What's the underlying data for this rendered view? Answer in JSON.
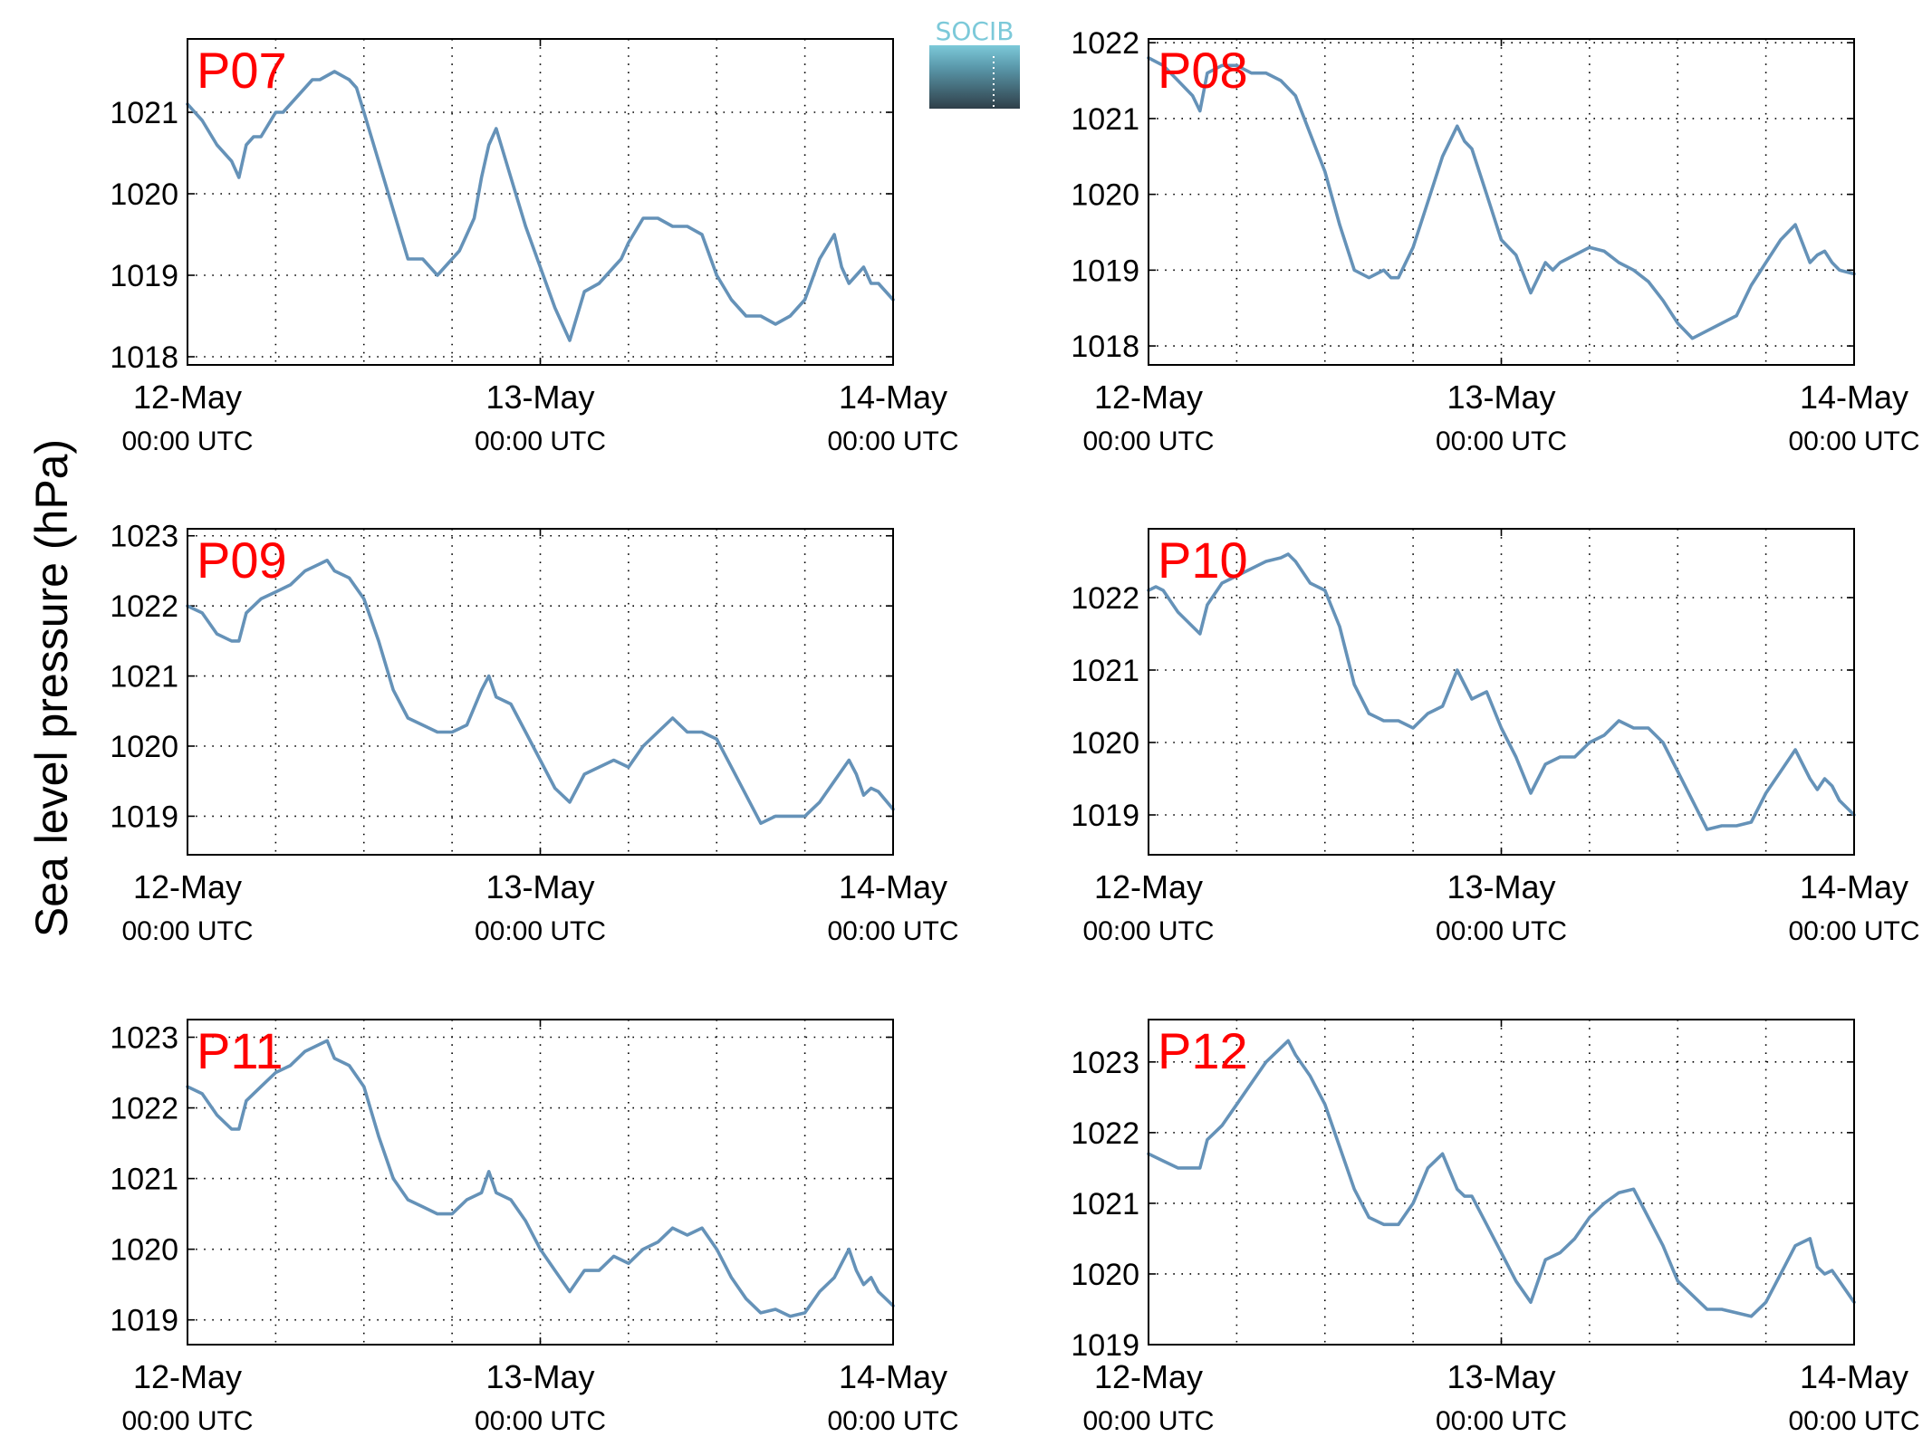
{
  "ylabel": "Sea level pressure (hPa)",
  "logo": {
    "text": "SOCIB",
    "colors": {
      "top": "#7cc9d9",
      "bottom": "#2f3f49"
    }
  },
  "colors": {
    "line": "#6592b8",
    "panel_label": "#ff0000",
    "grid": "#000000"
  },
  "chart_data": [
    {
      "type": "line",
      "panel_label": "P07",
      "ylim": [
        1017.9,
        1021.9
      ],
      "yticks": [
        1018,
        1019,
        1020,
        1021
      ],
      "xticks": [
        {
          "day": "12-May",
          "time": "00:00 UTC"
        },
        {
          "day": "13-May",
          "time": "00:00 UTC"
        },
        {
          "day": "14-May",
          "time": "00:00 UTC"
        }
      ],
      "xlim_hours": [
        0,
        48
      ],
      "series": [
        {
          "x": [
            0,
            1,
            2,
            3,
            3.5,
            4,
            4.5,
            5,
            6,
            6.5,
            7,
            8,
            8.5,
            9,
            10,
            11,
            11.5,
            12,
            13,
            14,
            15,
            16,
            17,
            18,
            18.5,
            19,
            19.5,
            20,
            20.5,
            21,
            22,
            23,
            24,
            25,
            26,
            27,
            27.5,
            28,
            29,
            29.5,
            30,
            31,
            32,
            33,
            34,
            35,
            36,
            37,
            38,
            39,
            40,
            41,
            42,
            43,
            44,
            44.5,
            45,
            45.5,
            46,
            46.5,
            47,
            48
          ],
          "y": [
            1021.1,
            1020.9,
            1020.6,
            1020.4,
            1020.2,
            1020.6,
            1020.7,
            1020.7,
            1021.0,
            1021.0,
            1021.1,
            1021.3,
            1021.4,
            1021.4,
            1021.5,
            1021.4,
            1021.3,
            1021.0,
            1020.4,
            1019.8,
            1019.2,
            1019.2,
            1019.0,
            1019.2,
            1019.3,
            1019.5,
            1019.7,
            1020.2,
            1020.6,
            1020.8,
            1020.2,
            1019.6,
            1019.1,
            1018.6,
            1018.2,
            1018.8,
            1018.85,
            1018.9,
            1019.1,
            1019.2,
            1019.4,
            1019.7,
            1019.7,
            1019.6,
            1019.6,
            1019.5,
            1019.0,
            1018.7,
            1018.5,
            1018.5,
            1018.4,
            1018.5,
            1018.7,
            1019.2,
            1019.5,
            1019.1,
            1018.9,
            1019.0,
            1019.1,
            1018.9,
            1018.9,
            1018.7
          ]
        }
      ]
    },
    {
      "type": "line",
      "panel_label": "P08",
      "ylim": [
        1017.75,
        1022.05
      ],
      "yticks": [
        1018,
        1019,
        1020,
        1021,
        1022
      ],
      "xticks": [
        {
          "day": "12-May",
          "time": "00:00 UTC"
        },
        {
          "day": "13-May",
          "time": "00:00 UTC"
        },
        {
          "day": "14-May",
          "time": "00:00 UTC"
        }
      ],
      "xlim_hours": [
        0,
        48
      ],
      "series": [
        {
          "x": [
            0,
            1,
            2,
            3,
            3.5,
            4,
            5,
            6,
            7,
            8,
            9,
            10,
            11,
            12,
            13,
            14,
            15,
            16,
            16.5,
            17,
            18,
            19,
            20,
            21,
            21.5,
            22,
            23,
            24,
            25,
            26,
            27,
            27.5,
            28,
            29,
            30,
            31,
            32,
            33,
            34,
            35,
            36,
            37,
            38,
            39,
            40,
            41,
            42,
            43,
            44,
            45,
            45.5,
            46,
            46.5,
            47,
            48
          ],
          "y": [
            1021.8,
            1021.7,
            1021.5,
            1021.3,
            1021.1,
            1021.6,
            1021.7,
            1021.7,
            1021.6,
            1021.6,
            1021.5,
            1021.3,
            1020.8,
            1020.3,
            1019.6,
            1019.0,
            1018.9,
            1019.0,
            1018.9,
            1018.9,
            1019.3,
            1019.9,
            1020.5,
            1020.9,
            1020.7,
            1020.6,
            1020.0,
            1019.4,
            1019.2,
            1018.7,
            1019.1,
            1019.0,
            1019.1,
            1019.2,
            1019.3,
            1019.25,
            1019.1,
            1019.0,
            1018.85,
            1018.6,
            1018.3,
            1018.1,
            1018.2,
            1018.3,
            1018.4,
            1018.8,
            1019.1,
            1019.4,
            1019.6,
            1019.1,
            1019.2,
            1019.25,
            1019.1,
            1019.0,
            1018.95
          ]
        }
      ]
    },
    {
      "type": "line",
      "panel_label": "P09",
      "ylim": [
        1018.45,
        1023.1
      ],
      "yticks": [
        1019,
        1020,
        1021,
        1022,
        1023
      ],
      "xticks": [
        {
          "day": "12-May",
          "time": "00:00 UTC"
        },
        {
          "day": "13-May",
          "time": "00:00 UTC"
        },
        {
          "day": "14-May",
          "time": "00:00 UTC"
        }
      ],
      "xlim_hours": [
        0,
        48
      ],
      "series": [
        {
          "x": [
            0,
            1,
            2,
            3,
            3.5,
            4,
            5,
            6,
            7,
            8,
            9,
            9.5,
            10,
            11,
            12,
            13,
            14,
            15,
            16,
            17,
            18,
            19,
            20,
            20.5,
            21,
            22,
            23,
            24,
            25,
            26,
            27,
            28,
            29,
            30,
            31,
            32,
            33,
            34,
            35,
            36,
            37,
            38,
            39,
            40,
            41,
            42,
            43,
            44,
            45,
            45.5,
            46,
            46.5,
            47,
            48
          ],
          "y": [
            1022.0,
            1021.9,
            1021.6,
            1021.5,
            1021.5,
            1021.9,
            1022.1,
            1022.2,
            1022.3,
            1022.5,
            1022.6,
            1022.65,
            1022.5,
            1022.4,
            1022.1,
            1021.5,
            1020.8,
            1020.4,
            1020.3,
            1020.2,
            1020.2,
            1020.3,
            1020.8,
            1021.0,
            1020.7,
            1020.6,
            1020.2,
            1019.8,
            1019.4,
            1019.2,
            1019.6,
            1019.7,
            1019.8,
            1019.7,
            1020.0,
            1020.2,
            1020.4,
            1020.2,
            1020.2,
            1020.1,
            1019.7,
            1019.3,
            1018.9,
            1019.0,
            1019.0,
            1019.0,
            1019.2,
            1019.5,
            1019.8,
            1019.6,
            1019.3,
            1019.4,
            1019.35,
            1019.1
          ]
        }
      ]
    },
    {
      "type": "line",
      "panel_label": "P10",
      "ylim": [
        1018.45,
        1022.95
      ],
      "yticks": [
        1019,
        1020,
        1021,
        1022
      ],
      "xticks": [
        {
          "day": "12-May",
          "time": "00:00 UTC"
        },
        {
          "day": "13-May",
          "time": "00:00 UTC"
        },
        {
          "day": "14-May",
          "time": "00:00 UTC"
        }
      ],
      "xlim_hours": [
        0,
        48
      ],
      "series": [
        {
          "x": [
            0,
            0.5,
            1,
            2,
            3,
            3.5,
            4,
            5,
            6,
            7,
            8,
            9,
            9.5,
            10,
            11,
            12,
            13,
            14,
            15,
            16,
            17,
            18,
            19,
            20,
            21,
            21.5,
            22,
            23,
            24,
            25,
            26,
            27,
            28,
            29,
            30,
            31,
            32,
            33,
            34,
            35,
            36,
            37,
            38,
            39,
            40,
            41,
            42,
            43,
            44,
            45,
            45.5,
            46,
            46.5,
            47,
            48
          ],
          "y": [
            1022.1,
            1022.15,
            1022.1,
            1021.8,
            1021.6,
            1021.5,
            1021.9,
            1022.2,
            1022.3,
            1022.4,
            1022.5,
            1022.55,
            1022.6,
            1022.5,
            1022.2,
            1022.1,
            1021.6,
            1020.8,
            1020.4,
            1020.3,
            1020.3,
            1020.2,
            1020.4,
            1020.5,
            1021.0,
            1020.8,
            1020.6,
            1020.7,
            1020.2,
            1019.8,
            1019.3,
            1019.7,
            1019.8,
            1019.8,
            1020.0,
            1020.1,
            1020.3,
            1020.2,
            1020.2,
            1020.0,
            1019.6,
            1019.2,
            1018.8,
            1018.85,
            1018.85,
            1018.9,
            1019.3,
            1019.6,
            1019.9,
            1019.5,
            1019.35,
            1019.5,
            1019.4,
            1019.2,
            1019.0
          ]
        }
      ]
    },
    {
      "type": "line",
      "panel_label": "P11",
      "ylim": [
        1018.65,
        1023.25
      ],
      "yticks": [
        1019,
        1020,
        1021,
        1022,
        1023
      ],
      "xticks": [
        {
          "day": "12-May",
          "time": "00:00 UTC"
        },
        {
          "day": "13-May",
          "time": "00:00 UTC"
        },
        {
          "day": "14-May",
          "time": "00:00 UTC"
        }
      ],
      "xlim_hours": [
        0,
        48
      ],
      "series": [
        {
          "x": [
            0,
            1,
            2,
            3,
            3.5,
            4,
            5,
            6,
            7,
            8,
            9,
            9.5,
            10,
            11,
            12,
            13,
            14,
            15,
            16,
            17,
            18,
            19,
            20,
            20.5,
            21,
            22,
            23,
            24,
            25,
            26,
            27,
            28,
            29,
            30,
            31,
            32,
            33,
            34,
            35,
            36,
            37,
            38,
            39,
            40,
            41,
            42,
            43,
            44,
            45,
            45.5,
            46,
            46.5,
            47,
            48
          ],
          "y": [
            1022.3,
            1022.2,
            1021.9,
            1021.7,
            1021.7,
            1022.1,
            1022.3,
            1022.5,
            1022.6,
            1022.8,
            1022.9,
            1022.95,
            1022.7,
            1022.6,
            1022.3,
            1021.6,
            1021.0,
            1020.7,
            1020.6,
            1020.5,
            1020.5,
            1020.7,
            1020.8,
            1021.1,
            1020.8,
            1020.7,
            1020.4,
            1020.0,
            1019.7,
            1019.4,
            1019.7,
            1019.7,
            1019.9,
            1019.8,
            1020.0,
            1020.1,
            1020.3,
            1020.2,
            1020.3,
            1020.0,
            1019.6,
            1019.3,
            1019.1,
            1019.15,
            1019.05,
            1019.1,
            1019.4,
            1019.6,
            1020.0,
            1019.7,
            1019.5,
            1019.6,
            1019.4,
            1019.2
          ]
        }
      ]
    },
    {
      "type": "line",
      "panel_label": "P12",
      "ylim": [
        1019.0,
        1023.6
      ],
      "yticks": [
        1019,
        1020,
        1021,
        1022,
        1023
      ],
      "xticks": [
        {
          "day": "12-May",
          "time": "00:00 UTC"
        },
        {
          "day": "13-May",
          "time": "00:00 UTC"
        },
        {
          "day": "14-May",
          "time": "00:00 UTC"
        }
      ],
      "xlim_hours": [
        0,
        48
      ],
      "series": [
        {
          "x": [
            0,
            1,
            2,
            3,
            3.5,
            4,
            5,
            6,
            7,
            8,
            9,
            9.5,
            10,
            11,
            12,
            13,
            14,
            15,
            16,
            17,
            18,
            19,
            20,
            21,
            21.5,
            22,
            23,
            24,
            25,
            26,
            27,
            28,
            29,
            30,
            31,
            32,
            33,
            34,
            35,
            36,
            37,
            38,
            39,
            40,
            41,
            42,
            43,
            44,
            45,
            45.5,
            46,
            46.5,
            47,
            48
          ],
          "y": [
            1021.7,
            1021.6,
            1021.5,
            1021.5,
            1021.5,
            1021.9,
            1022.1,
            1022.4,
            1022.7,
            1023.0,
            1023.2,
            1023.3,
            1023.1,
            1022.8,
            1022.4,
            1021.8,
            1021.2,
            1020.8,
            1020.7,
            1020.7,
            1021.0,
            1021.5,
            1021.7,
            1021.2,
            1021.1,
            1021.1,
            1020.7,
            1020.3,
            1019.9,
            1019.6,
            1020.2,
            1020.3,
            1020.5,
            1020.8,
            1021.0,
            1021.15,
            1021.2,
            1020.8,
            1020.4,
            1019.9,
            1019.7,
            1019.5,
            1019.5,
            1019.45,
            1019.4,
            1019.6,
            1020.0,
            1020.4,
            1020.5,
            1020.1,
            1020.0,
            1020.05,
            1019.9,
            1019.6
          ]
        }
      ]
    }
  ]
}
